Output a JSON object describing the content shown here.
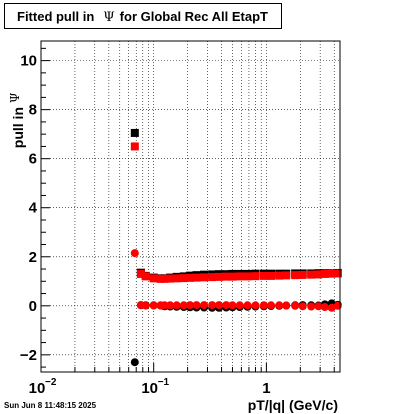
{
  "title": {
    "prefix": "Fitted pull in",
    "symbol": "Ψ",
    "suffix": "for Global Rec All EtapT"
  },
  "timestamp": "Sun Jun  8 11:48:15 2025",
  "chart_data": {
    "type": "scatter",
    "xlabel": "pT/|q| (GeV/c)",
    "ylabel": "pull in",
    "ylabel_symbol": "Ψ",
    "x_scale": "log",
    "xlim": [
      0.01,
      4.5
    ],
    "ylim": [
      -2.7,
      10.8
    ],
    "x_major_ticks": [
      {
        "value": 0.01,
        "label": "10",
        "exp": "−2"
      },
      {
        "value": 0.1,
        "label": "10",
        "exp": "−1"
      },
      {
        "value": 1,
        "label": "1",
        "exp": ""
      }
    ],
    "y_ticks": [
      {
        "value": -2,
        "label": "−2"
      },
      {
        "value": 0,
        "label": "0"
      },
      {
        "value": 2,
        "label": "2"
      },
      {
        "value": 4,
        "label": "4"
      },
      {
        "value": 6,
        "label": "6"
      },
      {
        "value": 8,
        "label": "8"
      },
      {
        "value": 10,
        "label": "10"
      }
    ],
    "grid": true,
    "series": [
      {
        "color": "#000000",
        "marker": "circle",
        "x": [
          0.068,
          0.077,
          0.085,
          0.1,
          0.115,
          0.125,
          0.14,
          0.16,
          0.185,
          0.21,
          0.24,
          0.28,
          0.33,
          0.38,
          0.44,
          0.5,
          0.58,
          0.68,
          0.8,
          0.95,
          1.1,
          1.3,
          1.5,
          1.8,
          2.1,
          2.5,
          2.9,
          3.3,
          3.8,
          4.3
        ],
        "y": [
          -2.3,
          0.03,
          0.02,
          0.02,
          0.01,
          -0.02,
          -0.03,
          -0.04,
          -0.05,
          -0.06,
          -0.07,
          -0.07,
          -0.08,
          -0.08,
          -0.07,
          -0.06,
          -0.05,
          -0.04,
          -0.03,
          -0.02,
          -0.01,
          0.0,
          0.01,
          0.02,
          0.03,
          0.02,
          0.01,
          0.06,
          0.1,
          0.04
        ]
      },
      {
        "color": "#000000",
        "marker": "square",
        "x": [
          0.068,
          0.077,
          0.085,
          0.1,
          0.115,
          0.125,
          0.14,
          0.16,
          0.185,
          0.21,
          0.24,
          0.28,
          0.33,
          0.38,
          0.44,
          0.5,
          0.58,
          0.68,
          0.8,
          0.95,
          1.1,
          1.3,
          1.5,
          1.8,
          2.1,
          2.5,
          2.9,
          3.3,
          3.8,
          4.3
        ],
        "y": [
          7.05,
          1.35,
          1.22,
          1.15,
          1.12,
          1.12,
          1.15,
          1.18,
          1.2,
          1.23,
          1.25,
          1.27,
          1.28,
          1.29,
          1.29,
          1.3,
          1.3,
          1.3,
          1.31,
          1.31,
          1.31,
          1.31,
          1.31,
          1.32,
          1.32,
          1.32,
          1.33,
          1.33,
          1.33,
          1.34
        ]
      },
      {
        "color": "#ff0000",
        "marker": "circle",
        "x": [
          0.068,
          0.077,
          0.085,
          0.1,
          0.115,
          0.125,
          0.14,
          0.16,
          0.185,
          0.21,
          0.24,
          0.28,
          0.33,
          0.38,
          0.44,
          0.5,
          0.58,
          0.68,
          0.8,
          0.95,
          1.1,
          1.3,
          1.5,
          1.8,
          2.1,
          2.5,
          2.9,
          3.3,
          3.8,
          4.3
        ],
        "y": [
          2.15,
          0.02,
          0.01,
          0.01,
          0.02,
          0.02,
          0.02,
          0.02,
          0.02,
          0.03,
          0.03,
          0.03,
          0.03,
          0.03,
          0.03,
          0.02,
          0.02,
          0.02,
          0.02,
          0.02,
          0.02,
          0.02,
          0.01,
          0.0,
          -0.02,
          -0.03,
          -0.02,
          -0.05,
          -0.08,
          0.0
        ]
      },
      {
        "color": "#ff0000",
        "marker": "square",
        "x": [
          0.068,
          0.077,
          0.085,
          0.1,
          0.115,
          0.125,
          0.14,
          0.16,
          0.185,
          0.21,
          0.24,
          0.28,
          0.33,
          0.38,
          0.44,
          0.5,
          0.58,
          0.68,
          0.8,
          0.95,
          1.1,
          1.3,
          1.5,
          1.8,
          2.1,
          2.5,
          2.9,
          3.3,
          3.8,
          4.3
        ],
        "y": [
          6.5,
          1.3,
          1.2,
          1.12,
          1.1,
          1.1,
          1.11,
          1.12,
          1.13,
          1.14,
          1.15,
          1.16,
          1.17,
          1.18,
          1.19,
          1.19,
          1.2,
          1.2,
          1.21,
          1.22,
          1.22,
          1.23,
          1.24,
          1.25,
          1.26,
          1.27,
          1.28,
          1.3,
          1.31,
          1.32
        ]
      }
    ]
  }
}
